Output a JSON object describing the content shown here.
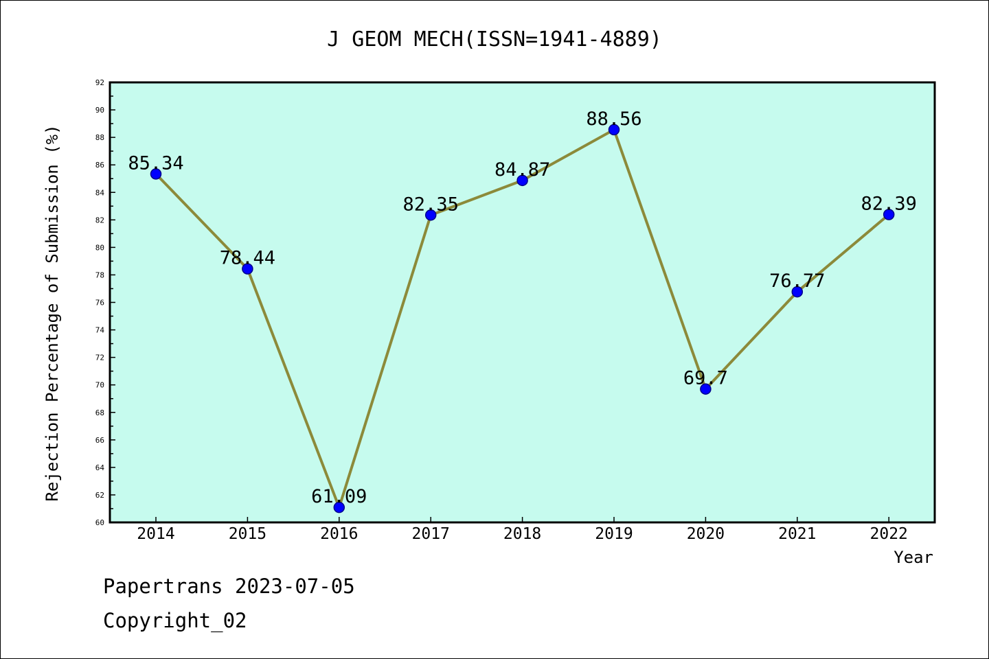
{
  "chart_data": {
    "type": "line",
    "title": "J GEOM MECH(ISSN=1941-4889)",
    "xlabel": "Year",
    "ylabel": "Rejection Percentage of Submission (%)",
    "categories": [
      "2014",
      "2015",
      "2016",
      "2017",
      "2018",
      "2019",
      "2020",
      "2021",
      "2022"
    ],
    "values": [
      85.34,
      78.44,
      61.09,
      82.35,
      84.87,
      88.56,
      69.7,
      76.77,
      82.39
    ],
    "data_labels": [
      "85.34",
      "78.44",
      "61.09",
      "82.35",
      "84.87",
      "88.56",
      "69.7",
      "76.77",
      "82.39"
    ],
    "ylim": [
      60,
      92
    ],
    "yticks": [
      "60",
      "62",
      "64",
      "66",
      "68",
      "70",
      "72",
      "74",
      "76",
      "78",
      "80",
      "82",
      "84",
      "86",
      "88",
      "90",
      "92"
    ],
    "grid": false,
    "legend": "none",
    "colors": {
      "plot_background": "#c6fbee",
      "line": "#8c8a3a",
      "marker": "#0000ff",
      "marker_edge": "#00008b"
    }
  },
  "footer": {
    "source": "Papertrans 2023-07-05",
    "copyright": "Copyright_02"
  }
}
